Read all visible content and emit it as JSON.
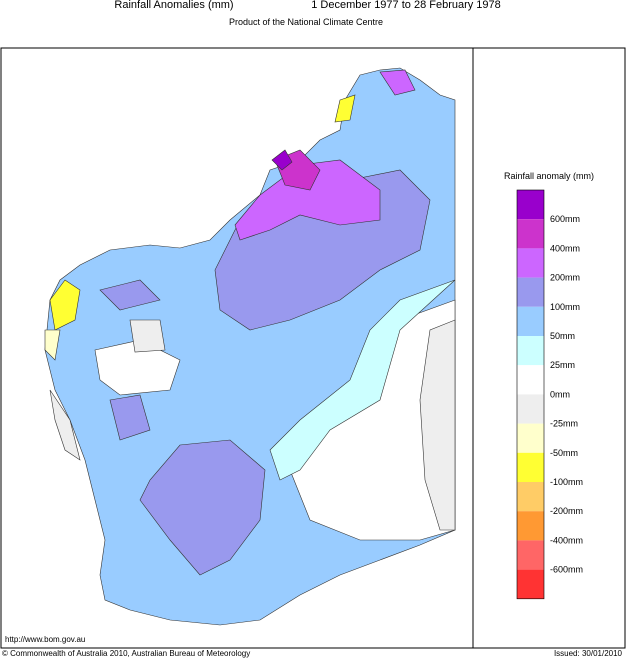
{
  "header": {
    "title": "Rainfall Anomalies (mm)",
    "period": "1 December 1977 to 28 February 1978",
    "subtitle": "Product of the National Climate Centre"
  },
  "legend": {
    "title": "Rainfall anomaly (mm)",
    "colors": [
      "#9900cc",
      "#cc33cc",
      "#cc66ff",
      "#9999ee",
      "#99ccff",
      "#ccffff",
      "#ffffff",
      "#eeeeee",
      "#ffffcc",
      "#ffff33",
      "#ffcc66",
      "#ff9933",
      "#ff6666",
      "#ff3333"
    ],
    "labels": [
      "600mm",
      "400mm",
      "200mm",
      "100mm",
      "50mm",
      "25mm",
      "0mm",
      "-25mm",
      "-50mm",
      "-100mm",
      "-200mm",
      "-400mm",
      "-600mm"
    ]
  },
  "footer": {
    "url": "http://www.bom.gov.au",
    "copyright": "© Commonwealth of Australia 2010, Australian Bureau of Meteorology",
    "issued": "Issued: 30/01/2010"
  }
}
